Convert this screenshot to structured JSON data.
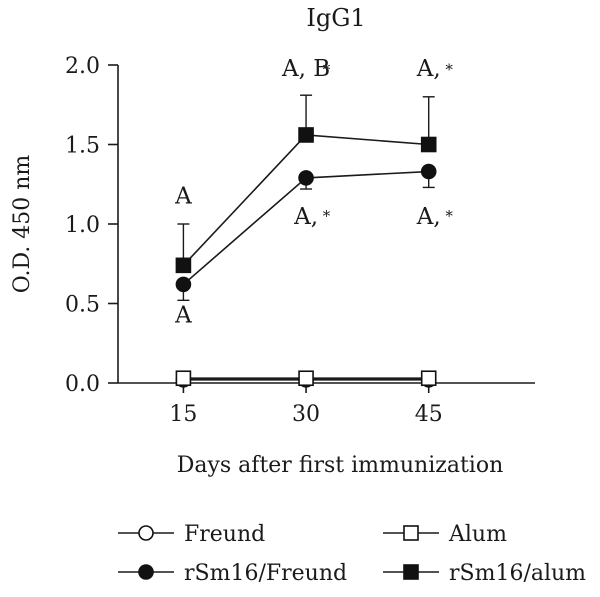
{
  "chart_data": {
    "type": "line",
    "title": "IgG1",
    "xlabel": "Days after first immunization",
    "ylabel": "O.D. 450 nm",
    "x": [
      15,
      30,
      45
    ],
    "xticks": [
      "15",
      "30",
      "45"
    ],
    "xlim": [
      7,
      58
    ],
    "ylim": [
      0,
      2.0
    ],
    "yticks": [
      "0.0",
      "0.5",
      "1.0",
      "1.5",
      "2.0"
    ],
    "grid": false,
    "legend_position": "bottom",
    "series": [
      {
        "name": "Freund",
        "values": [
          0.02,
          0.02,
          0.02
        ],
        "err": [
          0.01,
          0.01,
          0.01
        ],
        "marker": "circle",
        "filled": false
      },
      {
        "name": "Alum",
        "values": [
          0.03,
          0.03,
          0.03
        ],
        "err": [
          0.01,
          0.01,
          0.01
        ],
        "marker": "square",
        "filled": false
      },
      {
        "name": "rSm16/Freund",
        "values": [
          0.62,
          1.29,
          1.33
        ],
        "err": [
          0.1,
          0.07,
          0.1
        ],
        "err_dir": "down",
        "marker": "circle",
        "filled": true
      },
      {
        "name": "rSm16/alum",
        "values": [
          0.74,
          1.56,
          1.5
        ],
        "err": [
          0.26,
          0.25,
          0.3
        ],
        "err_dir": "up",
        "marker": "square",
        "filled": true
      }
    ],
    "annotations": [
      {
        "text": "A",
        "x": 15,
        "y": 1.13
      },
      {
        "text": "A",
        "x": 15,
        "y": 0.38
      },
      {
        "text": "A, B",
        "x": 30,
        "y": 1.93
      },
      {
        "text": "*",
        "x": 32.5,
        "y": 1.94,
        "small": true
      },
      {
        "text": "A, ",
        "x": 45,
        "y": 1.93
      },
      {
        "text": "*",
        "x": 47.5,
        "y": 1.94,
        "small": true
      },
      {
        "text": "A, ",
        "x": 30,
        "y": 1.0
      },
      {
        "text": "*",
        "x": 32.5,
        "y": 1.02,
        "small": true
      },
      {
        "text": "A, ",
        "x": 45,
        "y": 1.0
      },
      {
        "text": "*",
        "x": 47.5,
        "y": 1.02,
        "small": true
      }
    ]
  }
}
